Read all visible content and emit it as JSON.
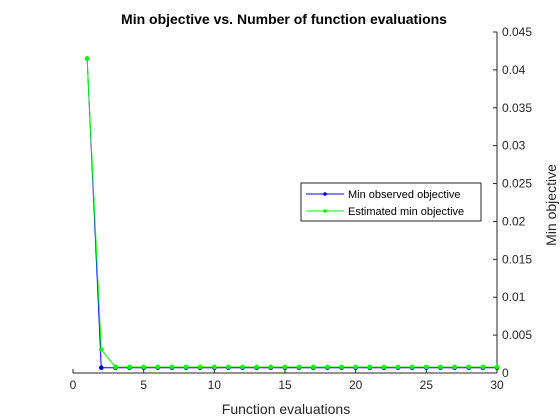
{
  "chart_data": {
    "type": "line",
    "title": "Min objective vs. Number of function evaluations",
    "xlabel": "Function evaluations",
    "ylabel": "Min objective",
    "xlim": [
      0,
      30
    ],
    "ylim": [
      0,
      0.045
    ],
    "xticks": [
      0,
      5,
      10,
      15,
      20,
      25,
      30
    ],
    "xtick_labels": [
      "0",
      "5",
      "10",
      "15",
      "20",
      "25",
      "30"
    ],
    "yticks": [
      0,
      0.005,
      0.01,
      0.015,
      0.02,
      0.025,
      0.03,
      0.035,
      0.04,
      0.045
    ],
    "ytick_labels": [
      "0",
      "0.005",
      "0.01",
      "0.015",
      "0.02",
      "0.025",
      "0.03",
      "0.035",
      "0.04",
      "0.045"
    ],
    "y_axis_side": "right",
    "grid": false,
    "legend_position": "right-center",
    "x": [
      1,
      2,
      3,
      4,
      5,
      6,
      7,
      8,
      9,
      10,
      11,
      12,
      13,
      14,
      15,
      16,
      17,
      18,
      19,
      20,
      21,
      22,
      23,
      24,
      25,
      26,
      27,
      28,
      29,
      30
    ],
    "series": [
      {
        "name": "Min observed objective",
        "color": "#0000ff",
        "values": [
          0.0415,
          0.0007,
          0.0007,
          0.0007,
          0.0007,
          0.0007,
          0.0007,
          0.0007,
          0.0007,
          0.0007,
          0.0007,
          0.0007,
          0.0007,
          0.0007,
          0.0007,
          0.0007,
          0.0007,
          0.0007,
          0.0007,
          0.0007,
          0.0007,
          0.0007,
          0.0007,
          0.0007,
          0.0007,
          0.0007,
          0.0007,
          0.0007,
          0.0007,
          0.0007
        ]
      },
      {
        "name": "Estimated min objective",
        "color": "#00ff00",
        "values": [
          0.0415,
          0.0031,
          0.0008,
          0.0008,
          0.0008,
          0.0008,
          0.0008,
          0.0008,
          0.0008,
          0.0008,
          0.0008,
          0.0008,
          0.0008,
          0.0008,
          0.0008,
          0.0008,
          0.0008,
          0.0008,
          0.0008,
          0.0008,
          0.0008,
          0.0008,
          0.0008,
          0.0008,
          0.0008,
          0.0008,
          0.0008,
          0.0008,
          0.0008,
          0.0008
        ]
      }
    ]
  }
}
